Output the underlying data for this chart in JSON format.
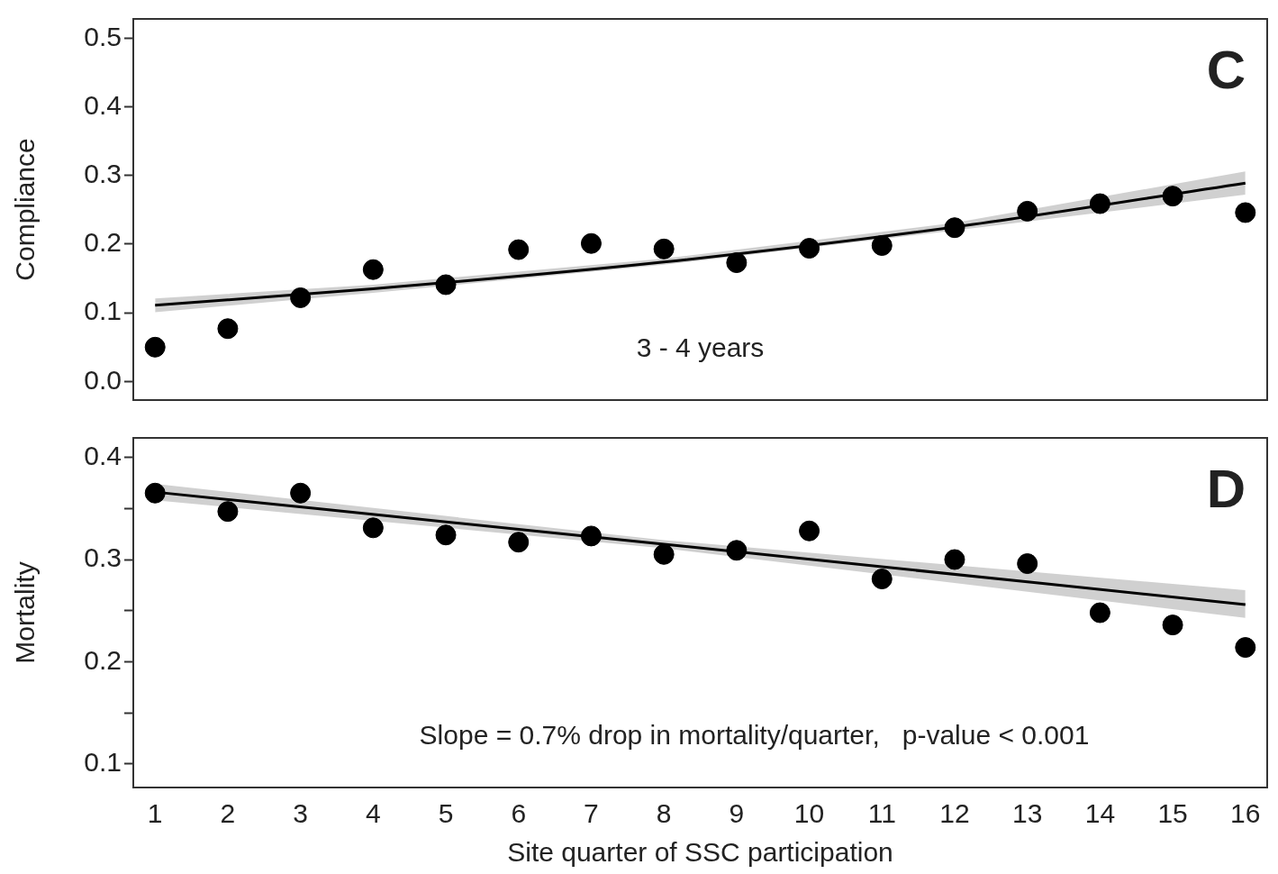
{
  "chart_data": [
    {
      "type": "scatter",
      "ylabel": "Compliance",
      "annotations": [
        "C",
        "3 - 4 years"
      ],
      "tick_labels": "y",
      "xlim": [
        0.7,
        16.3
      ],
      "xticks": [
        1,
        2,
        3,
        4,
        5,
        6,
        7,
        8,
        9,
        10,
        11,
        12,
        13,
        14,
        15,
        16
      ],
      "ylim": [
        -0.027,
        0.528
      ],
      "yticks": [
        {
          "value": 0,
          "label": "0.0"
        },
        0.1,
        0.2,
        0.3,
        0.4,
        0.5
      ],
      "x": [
        1,
        2,
        3,
        4,
        5,
        6,
        7,
        8,
        9,
        10,
        11,
        12,
        13,
        14,
        15,
        16
      ],
      "series": [
        {
          "color": "#000000",
          "marker": "circle",
          "values": [
            0.05,
            0.077,
            0.122,
            0.163,
            0.141,
            0.192,
            0.201,
            0.193,
            0.173,
            0.194,
            0.198,
            0.224,
            0.248,
            0.259,
            0.27,
            0.246
          ]
        },
        {
          "type": "line",
          "color": "#000000",
          "x": [
            1,
            4,
            8,
            12,
            16
          ],
          "values": [
            0.111,
            0.135,
            0.174,
            0.225,
            0.289
          ],
          "lower": [
            0.101,
            0.129,
            0.17,
            0.22,
            0.272
          ],
          "upper": [
            0.121,
            0.141,
            0.179,
            0.231,
            0.306
          ]
        }
      ]
    },
    {
      "type": "scatter",
      "xlabel": "Site quarter of SSC participation",
      "ylabel": "Mortality",
      "annotations": [
        "D",
        "Slope = 0.7% drop in mortality/quarter,   p-value < 0.001"
      ],
      "xlim": [
        0.7,
        16.3
      ],
      "xticks": [
        1,
        2,
        3,
        4,
        5,
        6,
        7,
        8,
        9,
        10,
        11,
        12,
        13,
        14,
        15,
        16
      ],
      "ylim": [
        0.077,
        0.419
      ],
      "yticks": [
        0.1,
        {
          "value": 0.15,
          "label": null
        },
        0.2,
        {
          "value": 0.25,
          "label": null
        },
        0.3,
        {
          "value": 0.35,
          "label": null
        },
        0.4
      ],
      "x": [
        1,
        2,
        3,
        4,
        5,
        6,
        7,
        8,
        9,
        10,
        11,
        12,
        13,
        14,
        15,
        16
      ],
      "series": [
        {
          "color": "#000000",
          "marker": "circle",
          "values": [
            0.365,
            0.347,
            0.365,
            0.331,
            0.324,
            0.317,
            0.323,
            0.305,
            0.309,
            0.328,
            0.281,
            0.3,
            0.296,
            0.248,
            0.236,
            0.214
          ]
        },
        {
          "type": "line",
          "color": "#000000",
          "x": [
            1,
            8,
            16
          ],
          "values": [
            0.366,
            0.315,
            0.256
          ],
          "lower": [
            0.358,
            0.311,
            0.243
          ],
          "upper": [
            0.374,
            0.319,
            0.27
          ]
        }
      ]
    }
  ]
}
